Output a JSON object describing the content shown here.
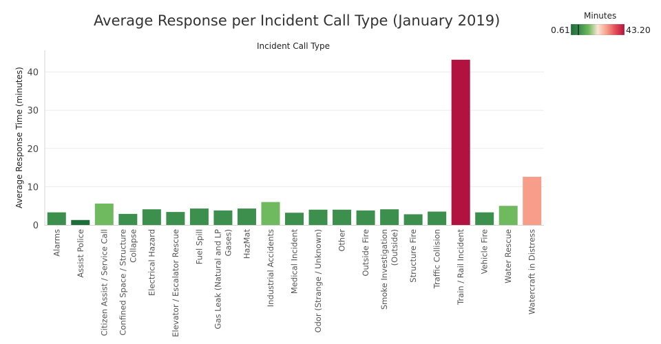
{
  "chart_data": {
    "type": "bar",
    "title": "Average Response per Incident Call Type (January 2019)",
    "xlabel": "Incident Call Type",
    "ylabel": "Average Response Time (minutes)",
    "ylim": [
      0,
      45
    ],
    "yticks": [
      0,
      10,
      20,
      30,
      40
    ],
    "grid": true,
    "legend_position": "top-right",
    "color_legend": {
      "title": "Minutes",
      "min": 0.61,
      "max": 43.2,
      "min_label": "0.61",
      "max_label": "43.20",
      "colors": [
        "#1e6e3a",
        "#3d8f4d",
        "#6fba5e",
        "#fbe5d5",
        "#f5a08a",
        "#e34a55",
        "#b2123f"
      ]
    },
    "categories": [
      "Alarms",
      "Assist Police",
      "Citizen Assist / Service Call",
      "Confined Space / Structure Collapse",
      "Electrical Hazard",
      "Elevator / Escalator Rescue",
      "Fuel Spill",
      "Gas Leak (Natural and LP Gases)",
      "HazMat",
      "Industrial Accidents",
      "Medical Incident",
      "Odor (Strange / Unknown)",
      "Other",
      "Outside Fire",
      "Smoke Investigation (Outside)",
      "Structure Fire",
      "Traffic Collision",
      "Train / Rail Incident",
      "Vehicle Fire",
      "Water Rescue",
      "Watercraft in Distress"
    ],
    "category_lines": [
      [
        "Alarms"
      ],
      [
        "Assist Police"
      ],
      [
        "Citizen Assist / Service Call"
      ],
      [
        "Confined Space / Structure",
        "Collapse"
      ],
      [
        "Electrical Hazard"
      ],
      [
        "Elevator / Escalator Rescue"
      ],
      [
        "Fuel Spill"
      ],
      [
        "Gas Leak (Natural and LP",
        "Gases)"
      ],
      [
        "HazMat"
      ],
      [
        "Industrial Accidents"
      ],
      [
        "Medical Incident"
      ],
      [
        "Odor (Strange / Unknown)"
      ],
      [
        "Other"
      ],
      [
        "Outside Fire"
      ],
      [
        "Smoke Investigation",
        "(Outside)"
      ],
      [
        "Structure Fire"
      ],
      [
        "Traffic Collision"
      ],
      [
        "Train / Rail Incident"
      ],
      [
        "Vehicle Fire"
      ],
      [
        "Water Rescue"
      ],
      [
        "Watercraft in Distress"
      ]
    ],
    "values": [
      3.3,
      1.3,
      5.6,
      2.9,
      4.1,
      3.4,
      4.3,
      3.8,
      4.3,
      6.0,
      3.2,
      4.0,
      4.0,
      3.8,
      4.1,
      2.8,
      3.5,
      43.2,
      3.3,
      5.0,
      12.6
    ],
    "bar_colors": [
      "#3d8f4d",
      "#1e6e3a",
      "#6fba5e",
      "#3d8f4d",
      "#3d8f4d",
      "#3d8f4d",
      "#3d8f4d",
      "#3d8f4d",
      "#3d8f4d",
      "#6fba5e",
      "#3d8f4d",
      "#3d8f4d",
      "#3d8f4d",
      "#3d8f4d",
      "#3d8f4d",
      "#3d8f4d",
      "#3d8f4d",
      "#b2123f",
      "#3d8f4d",
      "#6fba5e",
      "#f99d8b"
    ]
  }
}
